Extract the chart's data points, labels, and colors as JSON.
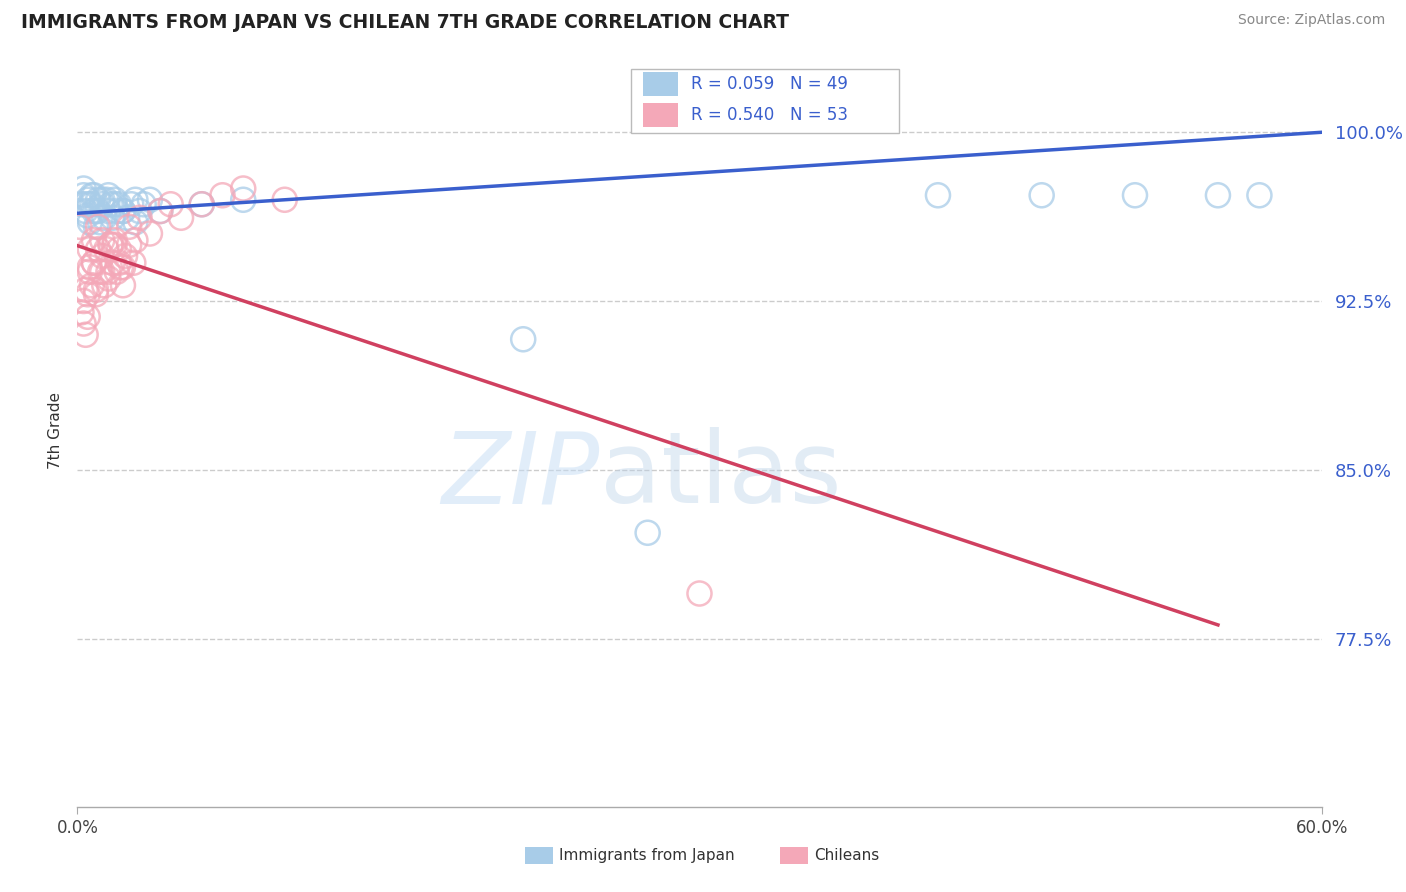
{
  "title": "IMMIGRANTS FROM JAPAN VS CHILEAN 7TH GRADE CORRELATION CHART",
  "source": "Source: ZipAtlas.com",
  "ylabel": "7th Grade",
  "yticks": [
    0.775,
    0.85,
    0.925,
    1.0
  ],
  "ytick_labels": [
    "77.5%",
    "85.0%",
    "92.5%",
    "100.0%"
  ],
  "xlim": [
    0.0,
    0.6
  ],
  "ylim": [
    0.7,
    1.035
  ],
  "legend_r_blue": "R = 0.059",
  "legend_n_blue": "N = 49",
  "legend_r_pink": "R = 0.540",
  "legend_n_pink": "N = 53",
  "blue_color": "#a8cce8",
  "pink_color": "#f4a8b8",
  "blue_line_color": "#3a5fcd",
  "pink_line_color": "#d04060",
  "legend_label_blue": "Immigrants from Japan",
  "legend_label_pink": "Chileans",
  "blue_x": [
    0.002,
    0.003,
    0.004,
    0.005,
    0.005,
    0.006,
    0.007,
    0.008,
    0.008,
    0.009,
    0.01,
    0.01,
    0.011,
    0.012,
    0.013,
    0.014,
    0.015,
    0.016,
    0.017,
    0.018,
    0.019,
    0.02,
    0.022,
    0.024,
    0.026,
    0.028,
    0.03,
    0.032,
    0.035,
    0.04,
    0.003,
    0.006,
    0.009,
    0.012,
    0.015,
    0.018,
    0.022,
    0.028,
    0.004,
    0.007,
    0.215,
    0.275,
    0.415,
    0.465,
    0.51,
    0.55,
    0.57,
    0.06,
    0.08
  ],
  "blue_y": [
    0.968,
    0.972,
    0.965,
    0.97,
    0.963,
    0.96,
    0.968,
    0.965,
    0.972,
    0.958,
    0.965,
    0.97,
    0.96,
    0.968,
    0.962,
    0.97,
    0.965,
    0.968,
    0.962,
    0.97,
    0.965,
    0.968,
    0.965,
    0.962,
    0.968,
    0.96,
    0.965,
    0.968,
    0.97,
    0.965,
    0.975,
    0.968,
    0.965,
    0.97,
    0.972,
    0.968,
    0.965,
    0.97,
    0.968,
    0.972,
    0.908,
    0.822,
    0.972,
    0.972,
    0.972,
    0.972,
    0.972,
    0.968,
    0.97
  ],
  "pink_x": [
    0.001,
    0.002,
    0.003,
    0.004,
    0.004,
    0.005,
    0.006,
    0.006,
    0.007,
    0.008,
    0.008,
    0.009,
    0.01,
    0.01,
    0.011,
    0.012,
    0.013,
    0.014,
    0.015,
    0.016,
    0.017,
    0.018,
    0.019,
    0.02,
    0.021,
    0.022,
    0.023,
    0.025,
    0.027,
    0.003,
    0.006,
    0.009,
    0.012,
    0.015,
    0.018,
    0.022,
    0.028,
    0.005,
    0.008,
    0.012,
    0.016,
    0.02,
    0.025,
    0.03,
    0.035,
    0.04,
    0.045,
    0.05,
    0.06,
    0.07,
    0.08,
    0.1,
    0.3
  ],
  "pink_y": [
    0.958,
    0.92,
    0.915,
    0.91,
    0.93,
    0.918,
    0.938,
    0.948,
    0.932,
    0.942,
    0.952,
    0.928,
    0.958,
    0.948,
    0.938,
    0.952,
    0.932,
    0.948,
    0.938,
    0.95,
    0.942,
    0.952,
    0.938,
    0.948,
    0.94,
    0.932,
    0.945,
    0.95,
    0.942,
    0.925,
    0.94,
    0.93,
    0.945,
    0.935,
    0.95,
    0.94,
    0.952,
    0.928,
    0.942,
    0.938,
    0.95,
    0.942,
    0.958,
    0.962,
    0.955,
    0.965,
    0.968,
    0.962,
    0.968,
    0.972,
    0.975,
    0.97,
    0.795
  ]
}
